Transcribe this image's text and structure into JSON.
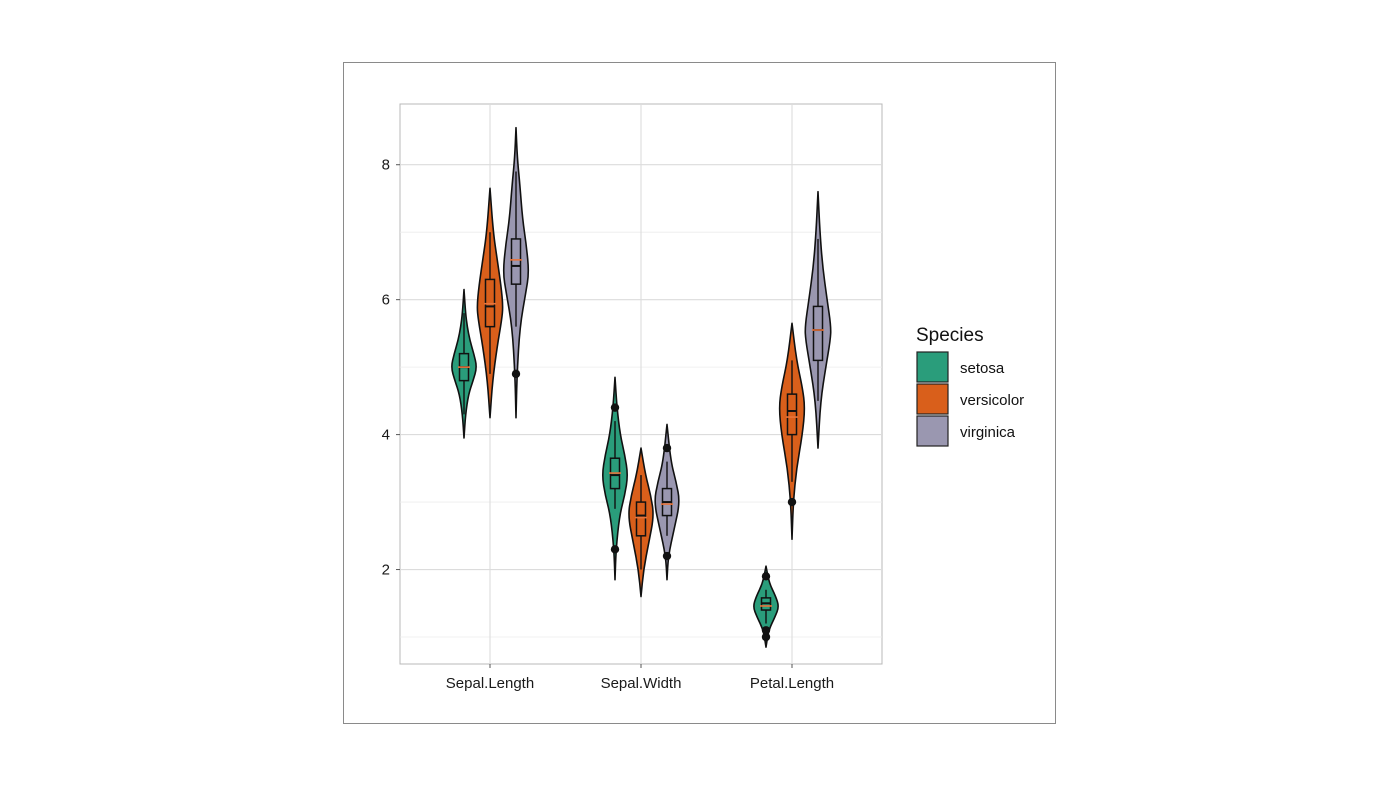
{
  "chart_data": {
    "type": "violin",
    "title": "",
    "xlabel": "",
    "ylabel": "",
    "categories": [
      "Sepal.Length",
      "Sepal.Width",
      "Petal.Length"
    ],
    "y_ticks": [
      2,
      4,
      6,
      8
    ],
    "ylim": [
      0.6,
      8.9
    ],
    "grid": true,
    "legend": {
      "title": "Species",
      "placement": "right",
      "entries": [
        "setosa",
        "versicolor",
        "virginica"
      ]
    },
    "colors": {
      "setosa": "#2a9d7b",
      "versicolor": "#d95f1b",
      "virginica": "#9a97b0",
      "mean_marker": "#e8743b",
      "outline": "#111111"
    },
    "series": [
      {
        "name": "setosa",
        "groups": [
          {
            "category": "Sepal.Length",
            "min": 3.95,
            "max": 6.15,
            "q1": 4.8,
            "median": 5.0,
            "q3": 5.2,
            "mean": 5.0,
            "whisker_low": 4.3,
            "whisker_high": 5.8,
            "outliers": [],
            "density": [
              [
                3.95,
                0.0
              ],
              [
                4.3,
                0.12
              ],
              [
                4.6,
                0.35
              ],
              [
                4.8,
                0.7
              ],
              [
                5.0,
                1.0
              ],
              [
                5.2,
                0.75
              ],
              [
                5.4,
                0.45
              ],
              [
                5.6,
                0.25
              ],
              [
                5.8,
                0.12
              ],
              [
                6.15,
                0.0
              ]
            ]
          },
          {
            "category": "Sepal.Width",
            "min": 1.85,
            "max": 4.85,
            "q1": 3.2,
            "median": 3.4,
            "q3": 3.65,
            "mean": 3.43,
            "whisker_low": 2.9,
            "whisker_high": 4.2,
            "outliers": [
              2.3,
              4.4
            ],
            "density": [
              [
                1.85,
                0.0
              ],
              [
                2.3,
                0.08
              ],
              [
                2.8,
                0.35
              ],
              [
                3.1,
                0.75
              ],
              [
                3.4,
                1.0
              ],
              [
                3.7,
                0.75
              ],
              [
                4.0,
                0.4
              ],
              [
                4.4,
                0.15
              ],
              [
                4.85,
                0.0
              ]
            ]
          },
          {
            "category": "Petal.Length",
            "min": 0.85,
            "max": 2.05,
            "q1": 1.4,
            "median": 1.5,
            "q3": 1.58,
            "mean": 1.46,
            "whisker_low": 1.2,
            "whisker_high": 1.7,
            "outliers": [
              1.0,
              1.1,
              1.9
            ],
            "density": [
              [
                0.85,
                0.0
              ],
              [
                1.1,
                0.2
              ],
              [
                1.3,
                0.7
              ],
              [
                1.45,
                1.0
              ],
              [
                1.6,
                0.75
              ],
              [
                1.8,
                0.25
              ],
              [
                2.05,
                0.0
              ]
            ]
          }
        ]
      },
      {
        "name": "versicolor",
        "groups": [
          {
            "category": "Sepal.Length",
            "min": 4.25,
            "max": 7.65,
            "q1": 5.6,
            "median": 5.9,
            "q3": 6.3,
            "mean": 5.94,
            "whisker_low": 4.9,
            "whisker_high": 7.0,
            "outliers": [],
            "density": [
              [
                4.25,
                0.0
              ],
              [
                4.8,
                0.2
              ],
              [
                5.3,
                0.55
              ],
              [
                5.7,
                0.9
              ],
              [
                5.9,
                1.0
              ],
              [
                6.2,
                0.85
              ],
              [
                6.6,
                0.55
              ],
              [
                7.0,
                0.25
              ],
              [
                7.65,
                0.0
              ]
            ]
          },
          {
            "category": "Sepal.Width",
            "min": 1.6,
            "max": 3.8,
            "q1": 2.5,
            "median": 2.8,
            "q3": 3.0,
            "mean": 2.77,
            "whisker_low": 2.0,
            "whisker_high": 3.4,
            "outliers": [],
            "density": [
              [
                1.6,
                0.0
              ],
              [
                2.0,
                0.2
              ],
              [
                2.4,
                0.6
              ],
              [
                2.8,
                1.0
              ],
              [
                3.1,
                0.75
              ],
              [
                3.4,
                0.35
              ],
              [
                3.8,
                0.0
              ]
            ]
          },
          {
            "category": "Petal.Length",
            "min": 2.45,
            "max": 5.65,
            "q1": 4.0,
            "median": 4.35,
            "q3": 4.6,
            "mean": 4.26,
            "whisker_low": 3.3,
            "whisker_high": 5.1,
            "outliers": [
              3.0
            ],
            "density": [
              [
                2.45,
                0.0
              ],
              [
                3.0,
                0.1
              ],
              [
                3.5,
                0.35
              ],
              [
                4.0,
                0.8
              ],
              [
                4.4,
                1.0
              ],
              [
                4.7,
                0.8
              ],
              [
                5.1,
                0.35
              ],
              [
                5.65,
                0.0
              ]
            ]
          }
        ]
      },
      {
        "name": "virginica",
        "groups": [
          {
            "category": "Sepal.Length",
            "min": 4.25,
            "max": 8.55,
            "q1": 6.23,
            "median": 6.5,
            "q3": 6.9,
            "mean": 6.59,
            "whisker_low": 5.6,
            "whisker_high": 7.9,
            "outliers": [
              4.9
            ],
            "density": [
              [
                4.25,
                0.0
              ],
              [
                4.9,
                0.08
              ],
              [
                5.6,
                0.3
              ],
              [
                6.1,
                0.75
              ],
              [
                6.4,
                1.0
              ],
              [
                6.8,
                0.8
              ],
              [
                7.2,
                0.5
              ],
              [
                7.7,
                0.3
              ],
              [
                8.1,
                0.1
              ],
              [
                8.55,
                0.0
              ]
            ]
          },
          {
            "category": "Sepal.Width",
            "min": 1.85,
            "max": 4.15,
            "q1": 2.8,
            "median": 3.0,
            "q3": 3.2,
            "mean": 2.97,
            "whisker_low": 2.5,
            "whisker_high": 3.6,
            "outliers": [
              2.2,
              3.8
            ],
            "density": [
              [
                1.85,
                0.0
              ],
              [
                2.2,
                0.1
              ],
              [
                2.6,
                0.55
              ],
              [
                3.0,
                1.0
              ],
              [
                3.3,
                0.7
              ],
              [
                3.6,
                0.3
              ],
              [
                4.15,
                0.0
              ]
            ]
          },
          {
            "category": "Petal.Length",
            "min": 3.8,
            "max": 7.6,
            "q1": 5.1,
            "median": 5.55,
            "q3": 5.9,
            "mean": 5.55,
            "whisker_low": 4.5,
            "whisker_high": 6.9,
            "outliers": [],
            "density": [
              [
                3.8,
                0.0
              ],
              [
                4.5,
                0.2
              ],
              [
                5.0,
                0.6
              ],
              [
                5.4,
                0.95
              ],
              [
                5.6,
                1.0
              ],
              [
                6.0,
                0.7
              ],
              [
                6.5,
                0.35
              ],
              [
                7.0,
                0.15
              ],
              [
                7.6,
                0.0
              ]
            ]
          }
        ]
      }
    ]
  }
}
